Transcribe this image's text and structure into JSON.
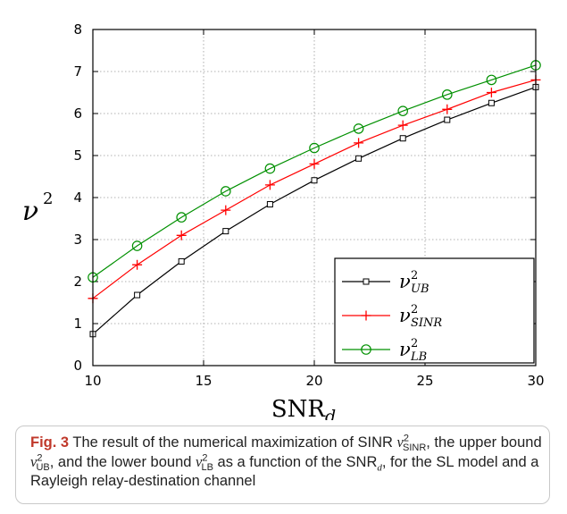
{
  "chart_data": {
    "type": "line",
    "xlabel": "SNR",
    "xlabel_sub": "d",
    "ylabel": "ν",
    "ylabel_sup": "2",
    "xlim": [
      10,
      30
    ],
    "ylim": [
      0,
      8
    ],
    "xticks": [
      10,
      15,
      20,
      25,
      30
    ],
    "yticks": [
      0,
      1,
      2,
      3,
      4,
      5,
      6,
      7,
      8
    ],
    "grid": true,
    "legend_position": "bottom-right",
    "x": [
      10,
      12,
      14,
      16,
      18,
      20,
      22,
      24,
      26,
      28,
      30
    ],
    "series": [
      {
        "name": "ν",
        "sub": "UB",
        "sup": "2",
        "marker": "square",
        "color": "#000000",
        "values": [
          0.75,
          1.68,
          2.48,
          3.2,
          3.84,
          4.41,
          4.93,
          5.41,
          5.85,
          6.25,
          6.63
        ]
      },
      {
        "name": "ν",
        "sub": "SINR",
        "sup": "2",
        "marker": "plus",
        "color": "#ff0000",
        "values": [
          1.6,
          2.4,
          3.1,
          3.7,
          4.3,
          4.8,
          5.3,
          5.72,
          6.1,
          6.5,
          6.8
        ]
      },
      {
        "name": "ν",
        "sub": "LB",
        "sup": "2",
        "marker": "circle",
        "color": "#009000",
        "values": [
          2.1,
          2.85,
          3.53,
          4.15,
          4.69,
          5.18,
          5.64,
          6.06,
          6.45,
          6.8,
          7.15
        ]
      }
    ]
  },
  "caption": {
    "label": "Fig. 3",
    "t1": " The result of the numerical maximization of SINR ",
    "v1_sym": "ν",
    "v1_sub": "SINR",
    "v1_sup": "2",
    "t2": ", the upper bound ",
    "v2_sym": "ν",
    "v2_sub": "UB",
    "v2_sup": "2",
    "t3": ", and the lower bound ",
    "v3_sym": "ν",
    "v3_sub": "LB",
    "v3_sup": "2",
    "t4": " as a function of the SNR",
    "snr_sub": "d",
    "t5": ", for the SL model and a Rayleigh relay-destination channel"
  }
}
